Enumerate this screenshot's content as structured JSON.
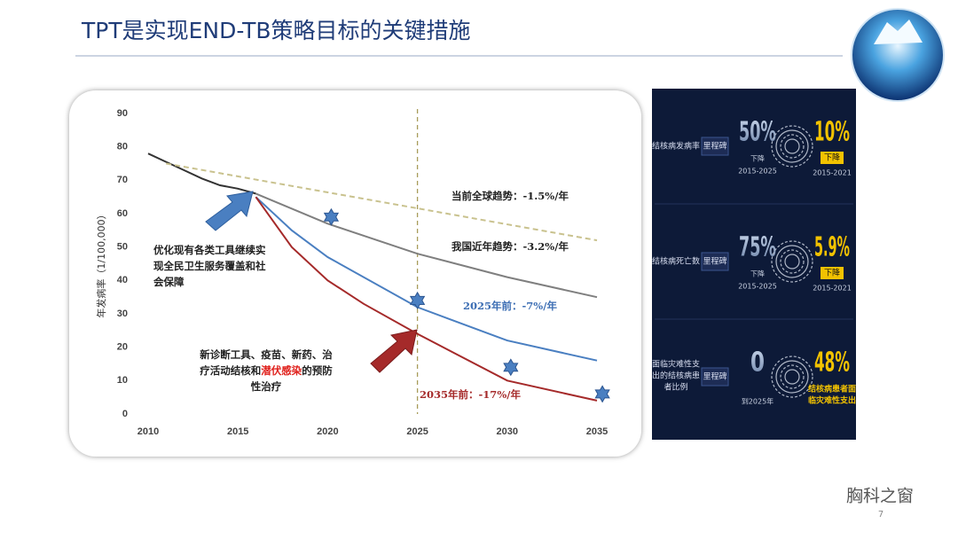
{
  "slide": {
    "title": "TPT是实现END-TB策略目标的关键措施",
    "watermark": "胸科之窗",
    "page_number": "7"
  },
  "chart_data": {
    "type": "line",
    "y_label": "年发病率（1/100,000）",
    "xlim": [
      2010,
      2035
    ],
    "ylim": [
      0,
      90
    ],
    "xticks": [
      2010,
      2015,
      2020,
      2025,
      2030,
      2035
    ],
    "yticks": [
      0,
      10,
      20,
      30,
      40,
      50,
      60,
      70,
      80,
      90
    ],
    "reference_x": 2025,
    "series": [
      {
        "color": "#333333",
        "x": [
          2010,
          2011,
          2012,
          2013,
          2014,
          2015,
          2016
        ],
        "values": [
          78,
          75.5,
          73,
          70.5,
          68.5,
          67.5,
          66
        ]
      },
      {
        "color": "#7f7f7f",
        "x": [
          2016,
          2020,
          2025,
          2030,
          2035
        ],
        "values": [
          66,
          57,
          48,
          41,
          35
        ]
      },
      {
        "color": "#4a7fc1",
        "x": [
          2016,
          2018,
          2020,
          2025,
          2030,
          2035
        ],
        "values": [
          65,
          55,
          47,
          32,
          22,
          16
        ]
      },
      {
        "color": "#a52a2a",
        "x": [
          2016,
          2018,
          2020,
          2022,
          2025,
          2030,
          2035
        ],
        "values": [
          65,
          50,
          40,
          33,
          24,
          10,
          4
        ]
      },
      {
        "color": "#c9c28e",
        "dashed": true,
        "x": [
          2011,
          2035
        ],
        "values": [
          75,
          52
        ]
      },
      {
        "color": "#4a7fc1",
        "marker": "star",
        "x": [
          2020.2,
          2025,
          2030.2,
          2035.3
        ],
        "values": [
          59,
          34,
          14,
          6
        ]
      }
    ],
    "annotations": {
      "global_trend": "当前全球趋势：-1.5%/年",
      "china_trend": "我国近年趋势：-3.2%/年",
      "target_2025": "2025年前：-7%/年",
      "target_2035": "2035年前：-17%/年",
      "optimize": [
        "优化现有各类工具继续实",
        "现全民卫生服务覆盖和社",
        "会保障"
      ],
      "new_tools": [
        "新诊断工具、疫苗、新药、治",
        "疗活动结核和",
        "潜伏感染",
        "的预防",
        "性治疗"
      ]
    }
  },
  "panel": {
    "rows": [
      {
        "label": "结核病发病率",
        "milestone": "里程碑",
        "target": "50%",
        "target_note": "下降",
        "target_period": "2015-2025",
        "actual": "10%",
        "actual_note": "下降",
        "actual_period": "2015-2021"
      },
      {
        "label": "结核病死亡数",
        "milestone": "里程碑",
        "target": "75%",
        "target_note": "下降",
        "target_period": "2015-2025",
        "actual": "5.9%",
        "actual_note": "下降",
        "actual_period": "2015-2021"
      },
      {
        "label": "面临灾难性支出的结核病患者比例",
        "milestone": "里程碑",
        "target": "0",
        "target_period": "到2025年",
        "actual": "48%",
        "actual_note": "结核病患者面临灾难性支出"
      }
    ]
  }
}
